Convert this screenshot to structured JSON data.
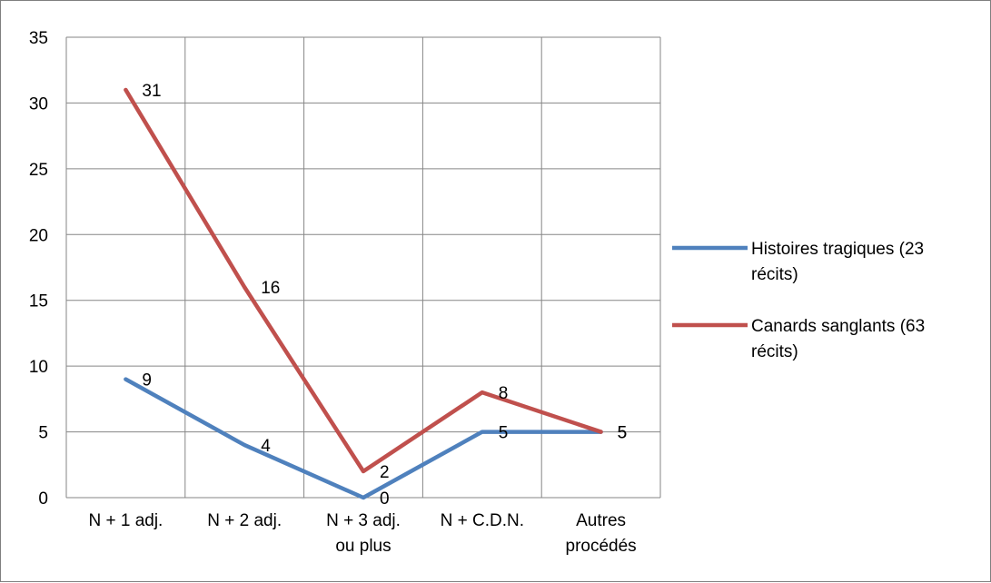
{
  "chart_data": {
    "type": "line",
    "categories": [
      [
        "N + 1 adj."
      ],
      [
        "N + 2 adj."
      ],
      [
        "N + 3 adj.",
        "ou plus"
      ],
      [
        "N + C.D.N."
      ],
      [
        "Autres",
        "procédés"
      ]
    ],
    "ylim": [
      0,
      35
    ],
    "yticks": [
      "0",
      "5",
      "10",
      "15",
      "20",
      "25",
      "30",
      "35"
    ],
    "grid": true,
    "legend_position": "right",
    "series": [
      {
        "name_lines": [
          "Histoires tragiques (23",
          "récits)"
        ],
        "color": "#4f81bd",
        "values": [
          9,
          4,
          0,
          5,
          5
        ],
        "labels": [
          "9",
          "4",
          "0",
          "5",
          "5"
        ]
      },
      {
        "name_lines": [
          "Canards sanglants (63",
          "récits)"
        ],
        "color": "#c0504d",
        "values": [
          31,
          16,
          2,
          8,
          5
        ],
        "labels": [
          "31",
          "16",
          "2",
          "8",
          "5"
        ]
      }
    ]
  }
}
